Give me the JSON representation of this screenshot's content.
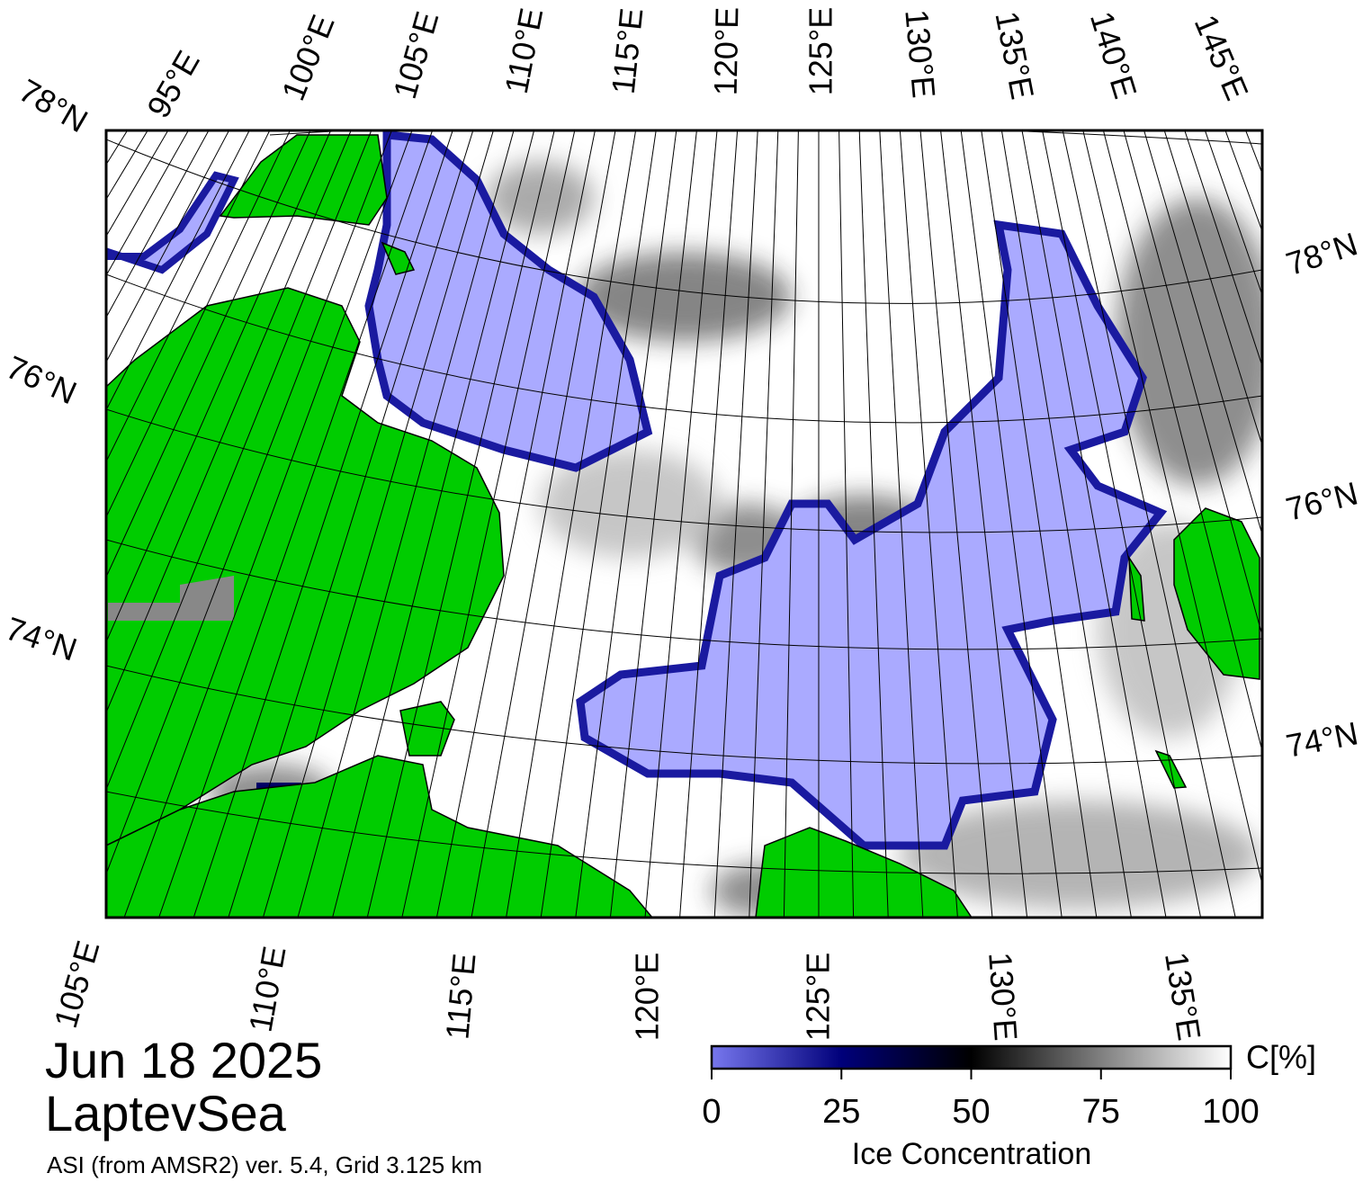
{
  "title": "Jun 18 2025",
  "region": "LaptevSea",
  "subtitle": "ASI (from AMSR2) ver. 5.4,  Grid 3.125 km",
  "graticule": {
    "top": [
      "95°E",
      "100°E",
      "105°E",
      "110°E",
      "115°E",
      "120°E",
      "125°E",
      "130°E",
      "135°E",
      "140°E",
      "145°E"
    ],
    "bottom": [
      "105°E",
      "110°E",
      "115°E",
      "120°E",
      "125°E",
      "130°E",
      "135°E"
    ],
    "left": [
      "78°N",
      "76°N",
      "74°N"
    ],
    "right": [
      "78°N",
      "76°N",
      "74°N"
    ]
  },
  "colorbar": {
    "label": "Ice Concentration",
    "unit": "C[%]",
    "range": [
      0,
      100
    ],
    "ticks": [
      0,
      25,
      50,
      75,
      100
    ]
  }
}
